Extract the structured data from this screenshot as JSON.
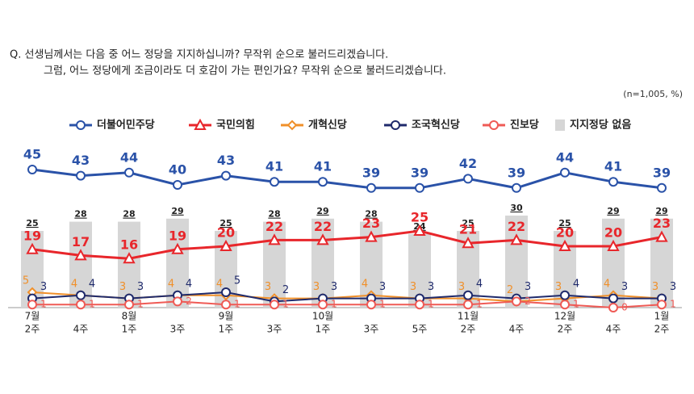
{
  "question": [
    "Q. 선생님께서는 다음 중 어느 정당을 지지하십니까? 무작위 순으로 불러드리겠습니다.",
    "그럼, 어느 정당에게 조금이라도 더 호감이 가는 편인가요? 무작위 순으로 불러드리겠습니다."
  ],
  "note": "(n=1,005, %)",
  "chart_data": {
    "type": "line",
    "categories": [
      "2주",
      "4주",
      "1주",
      "3주",
      "1주",
      "3주",
      "1주",
      "3주",
      "5주",
      "2주",
      "4주",
      "2주",
      "4주",
      "2주"
    ],
    "months": [
      "7월",
      null,
      "8월",
      null,
      "9월",
      null,
      "10월",
      null,
      null,
      "11월",
      null,
      "12월",
      null,
      "1월"
    ],
    "ylim": [
      0,
      50
    ],
    "bars": {
      "name": "지지정당 없음",
      "color": "#d6d6d6",
      "values": [
        25,
        28,
        28,
        29,
        25,
        28,
        29,
        28,
        24,
        25,
        30,
        25,
        29,
        29
      ]
    },
    "series": [
      {
        "name": "더불어민주당",
        "color": "#2a52a8",
        "marker": "circle",
        "values": [
          45,
          43,
          44,
          40,
          43,
          41,
          41,
          39,
          39,
          42,
          39,
          44,
          41,
          39
        ]
      },
      {
        "name": "국민의힘",
        "color": "#e8262b",
        "marker": "triangle",
        "values": [
          19,
          17,
          16,
          19,
          20,
          22,
          22,
          23,
          25,
          21,
          22,
          20,
          20,
          23
        ]
      },
      {
        "name": "개혁신당",
        "color": "#f0902a",
        "marker": "diamond",
        "values": [
          5,
          4,
          3,
          4,
          4,
          3,
          3,
          4,
          3,
          3,
          2,
          3,
          4,
          3
        ]
      },
      {
        "name": "조국혁신당",
        "color": "#1f2a6b",
        "marker": "circle",
        "values": [
          3,
          4,
          3,
          4,
          5,
          2,
          3,
          3,
          3,
          4,
          3,
          4,
          3,
          3
        ]
      },
      {
        "name": "진보당",
        "color": "#ef5a55",
        "marker": "circle",
        "values": [
          1,
          1,
          1,
          2,
          1,
          1,
          1,
          1,
          1,
          1,
          2,
          1,
          0,
          1
        ]
      }
    ]
  }
}
